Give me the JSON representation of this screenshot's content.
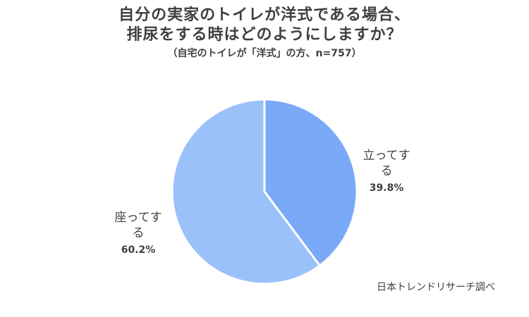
{
  "title_lines": [
    "自分の実家のトイレが洋式である場合、",
    "排尿をする時はどのようにしますか？"
  ],
  "subtitle": "（自宅のトイレが「洋式」の方、n=757）",
  "source": "日本トレンドリサーチ調べ",
  "chart_data": {
    "type": "pie",
    "slices": [
      {
        "label": "立ってする",
        "value": 39.8,
        "value_label": "39.8%",
        "color": "#79a9f7"
      },
      {
        "label": "座ってする",
        "value": 60.2,
        "value_label": "60.2%",
        "color": "#9bc1fb"
      }
    ]
  }
}
